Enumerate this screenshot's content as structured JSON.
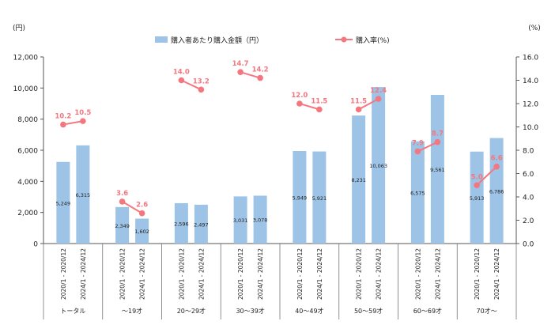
{
  "chart_data": {
    "type": "bar",
    "y_left_unit": "(円)",
    "y_right_unit": "(%)",
    "y_left_range": [
      0,
      12000
    ],
    "y_left_ticks": [
      "0",
      "2,000",
      "4,000",
      "6,000",
      "8,000",
      "10,000",
      "12,000"
    ],
    "y_right_range": [
      0,
      16
    ],
    "y_right_ticks": [
      "0.0",
      "2.0",
      "4.0",
      "6.0",
      "8.0",
      "10.0",
      "12.0",
      "14.0",
      "16.0"
    ],
    "legend_position": "top-center",
    "periods": [
      "2020/1 - 2020/12",
      "2024/1 - 2024/12"
    ],
    "groups": [
      "トータル",
      "～19才",
      "20～29才",
      "30～39才",
      "40～49才",
      "50～59才",
      "60～69才",
      "70才～"
    ],
    "series": [
      {
        "name": "購入者あたり購入金額（円）",
        "kind": "bar",
        "axis": "left",
        "color": "#9dc3e6",
        "values": [
          [
            5249,
            6315
          ],
          [
            2349,
            1602
          ],
          [
            2596,
            2497
          ],
          [
            3031,
            3078
          ],
          [
            5949,
            5921
          ],
          [
            8231,
            10063
          ],
          [
            6575,
            9561
          ],
          [
            5913,
            6786
          ]
        ],
        "labels": [
          [
            "5,249",
            "6,315"
          ],
          [
            "2,349",
            "1,602"
          ],
          [
            "2,596",
            "2,497"
          ],
          [
            "3,031",
            "3,078"
          ],
          [
            "5,949",
            "5,921"
          ],
          [
            "8,231",
            "10,063"
          ],
          [
            "6,575",
            "9,561"
          ],
          [
            "5,913",
            "6,786"
          ]
        ]
      },
      {
        "name": "購入率(%)",
        "kind": "line",
        "axis": "right",
        "color": "#f4777f",
        "values": [
          [
            10.2,
            10.5
          ],
          [
            3.6,
            2.6
          ],
          [
            14.0,
            13.2
          ],
          [
            14.7,
            14.2
          ],
          [
            12.0,
            11.5
          ],
          [
            11.5,
            12.4
          ],
          [
            7.9,
            8.7
          ],
          [
            5.0,
            6.6
          ]
        ],
        "labels": [
          [
            "10.2",
            "10.5"
          ],
          [
            "3.6",
            "2.6"
          ],
          [
            "14.0",
            "13.2"
          ],
          [
            "14.7",
            "14.2"
          ],
          [
            "12.0",
            "11.5"
          ],
          [
            "11.5",
            "12.4"
          ],
          [
            "7.9",
            "8.7"
          ],
          [
            "5.0",
            "6.6"
          ]
        ]
      }
    ]
  }
}
